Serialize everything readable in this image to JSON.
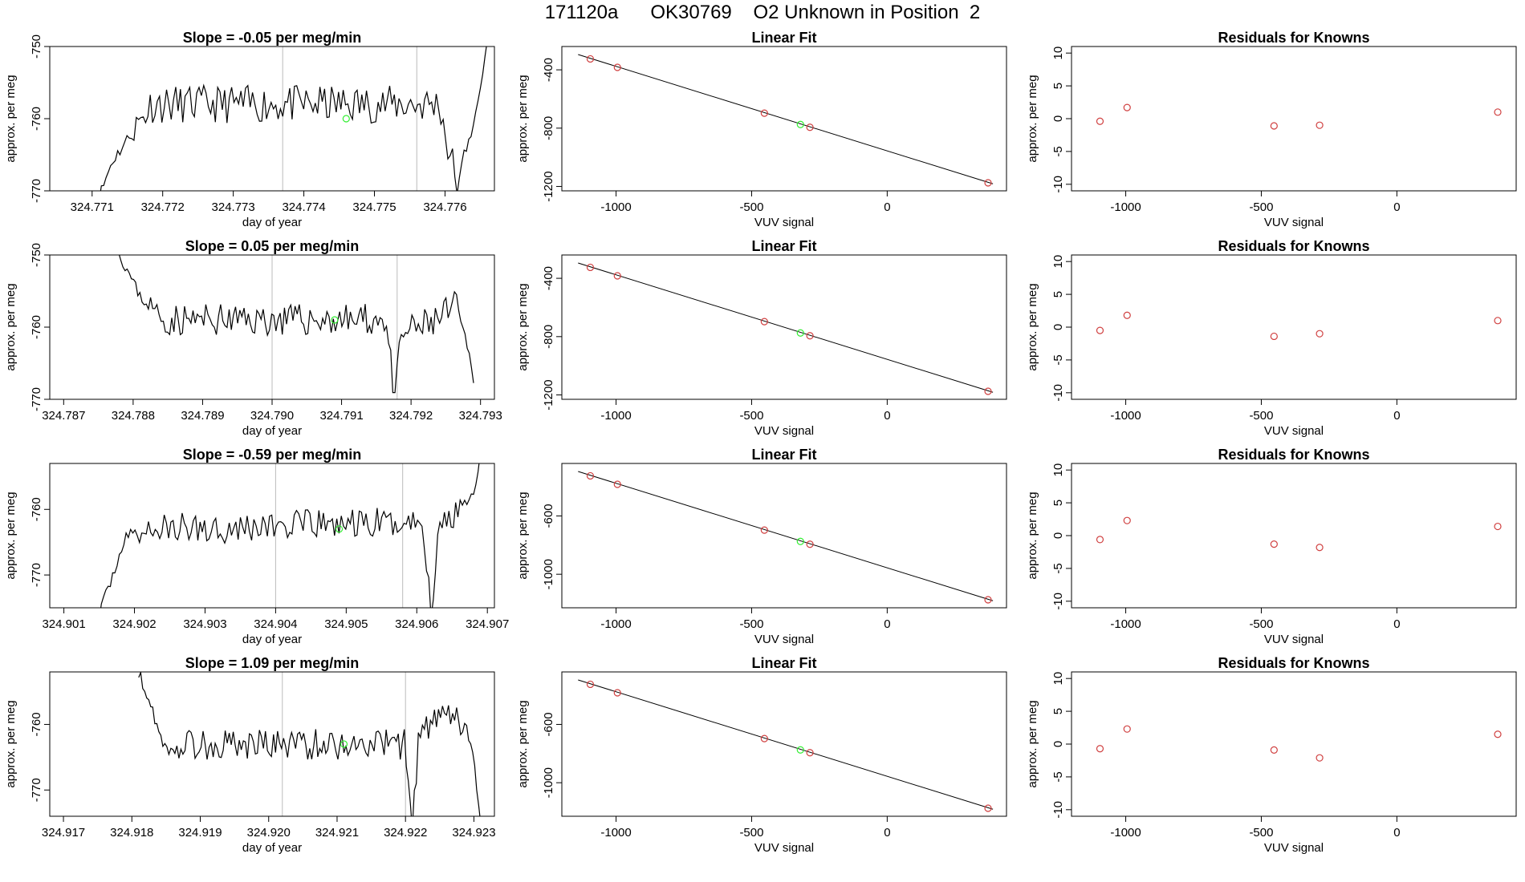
{
  "page": {
    "title": "171120a      OK30769    O2 Unknown in Position  2"
  },
  "colors": {
    "trace": "#000000",
    "marker_unknown": "#33ee33",
    "marker_known": "#d04040",
    "divider": "#bbbbbb",
    "fit_line": "#000000"
  },
  "chart_data": [
    {
      "type": "line",
      "panel": "time-1",
      "title": "Slope =  -0.05  per meg/min",
      "xlabel": "day of year",
      "ylabel": "approx. per meg",
      "xlim": [
        324.7704,
        324.7767
      ],
      "ylim": [
        -770,
        -750
      ],
      "xticks": [
        "324.771",
        "324.772",
        "324.773",
        "324.774",
        "324.775",
        "324.776"
      ],
      "yticks": [
        -770,
        -760,
        -750
      ],
      "ytick_labels": [
        "-770",
        "-760",
        "-750"
      ],
      "dividers": [
        324.7737,
        324.7756
      ],
      "unknown_point": {
        "x": 324.7746,
        "y": -760
      },
      "trace": {
        "x_start": 324.771,
        "x_end": 324.7766,
        "shape": [
          [
            0,
            -771
          ],
          [
            0.02,
            -770.5
          ],
          [
            0.05,
            -766
          ],
          [
            0.1,
            -762
          ],
          [
            0.15,
            -758
          ],
          [
            0.88,
            -758
          ],
          [
            0.9,
            -764
          ],
          [
            0.93,
            -770
          ],
          [
            0.95,
            -762
          ],
          [
            0.97,
            -760
          ],
          [
            0.985,
            -755
          ],
          [
            1.0,
            -749
          ]
        ],
        "noise": 2.6,
        "seed": 11
      }
    },
    {
      "type": "line",
      "panel": "time-2",
      "title": "Slope =  0.05  per meg/min",
      "xlabel": "day of year",
      "ylabel": "approx. per meg",
      "xlim": [
        324.7868,
        324.7932
      ],
      "ylim": [
        -770,
        -750
      ],
      "xticks": [
        "324.787",
        "324.788",
        "324.789",
        "324.790",
        "324.791",
        "324.792",
        "324.793"
      ],
      "yticks": [
        -770,
        -760,
        -750
      ],
      "ytick_labels": [
        "-770",
        "-760",
        "-750"
      ],
      "dividers": [
        324.79,
        324.7918
      ],
      "unknown_point": {
        "x": 324.7909,
        "y": -759
      },
      "trace": {
        "x_start": 324.7877,
        "x_end": 324.7929,
        "shape": [
          [
            0,
            -748
          ],
          [
            0.04,
            -752
          ],
          [
            0.08,
            -756
          ],
          [
            0.14,
            -759
          ],
          [
            0.76,
            -759
          ],
          [
            0.78,
            -771
          ],
          [
            0.8,
            -761
          ],
          [
            0.9,
            -759
          ],
          [
            0.95,
            -757
          ],
          [
            0.98,
            -762
          ],
          [
            1.0,
            -767
          ]
        ],
        "noise": 2.2,
        "seed": 23
      }
    },
    {
      "type": "line",
      "panel": "time-3",
      "title": "Slope =  -0.59  per meg/min",
      "xlabel": "day of year",
      "ylabel": "approx. per meg",
      "xlim": [
        324.9008,
        324.9071
      ],
      "ylim": [
        -775,
        -753
      ],
      "xticks": [
        "324.901",
        "324.902",
        "324.903",
        "324.904",
        "324.905",
        "324.906",
        "324.907"
      ],
      "yticks": [
        -770,
        -760
      ],
      "ytick_labels": [
        "-770",
        "-760"
      ],
      "dividers": [
        324.904,
        324.9058
      ],
      "unknown_point": {
        "x": 324.9049,
        "y": -763
      },
      "trace": {
        "x_start": 324.9015,
        "x_end": 324.9069,
        "shape": [
          [
            0,
            -776
          ],
          [
            0.03,
            -771
          ],
          [
            0.07,
            -764
          ],
          [
            0.15,
            -763
          ],
          [
            0.85,
            -762
          ],
          [
            0.87,
            -776
          ],
          [
            0.89,
            -763
          ],
          [
            0.95,
            -759
          ],
          [
            0.98,
            -758
          ],
          [
            1.0,
            -752
          ]
        ],
        "noise": 2.4,
        "seed": 37
      }
    },
    {
      "type": "line",
      "panel": "time-4",
      "title": "Slope =  1.09  per meg/min",
      "xlabel": "day of year",
      "ylabel": "approx. per meg",
      "xlim": [
        324.9168,
        324.9233
      ],
      "ylim": [
        -774,
        -752
      ],
      "xticks": [
        "324.917",
        "324.918",
        "324.919",
        "324.920",
        "324.921",
        "324.922",
        "324.923"
      ],
      "yticks": [
        -770,
        -760
      ],
      "ytick_labels": [
        "-770",
        "-760"
      ],
      "dividers": [
        324.9202,
        324.922
      ],
      "unknown_point": {
        "x": 324.9211,
        "y": -763
      },
      "trace": {
        "x_start": 324.9181,
        "x_end": 324.9231,
        "shape": [
          [
            0,
            -752
          ],
          [
            0.04,
            -758
          ],
          [
            0.08,
            -764
          ],
          [
            0.14,
            -763
          ],
          [
            0.78,
            -763
          ],
          [
            0.8,
            -776
          ],
          [
            0.82,
            -761
          ],
          [
            0.9,
            -759
          ],
          [
            0.95,
            -760
          ],
          [
            0.98,
            -765
          ],
          [
            1.0,
            -776
          ]
        ],
        "noise": 2.4,
        "seed": 53
      }
    },
    {
      "type": "scatter",
      "panel": "fit-1",
      "title": "Linear Fit",
      "xlabel": "VUV signal",
      "ylabel": "approx. per meg",
      "xlim": [
        -1200,
        440
      ],
      "ylim": [
        -1230,
        -240
      ],
      "xticks": [
        -1000,
        -500,
        0
      ],
      "xtick_labels": [
        "-1000",
        "-500",
        "0"
      ],
      "yticks": [
        -1200,
        -800,
        -400
      ],
      "ytick_labels": [
        "-1200",
        "-800",
        "-400"
      ],
      "line": {
        "x": [
          -1140,
          390
        ],
        "y": [
          -295,
          -1182
        ]
      },
      "knowns": [
        [
          -1095,
          -325
        ],
        [
          -995,
          -383
        ],
        [
          -453,
          -697
        ],
        [
          -285,
          -794
        ],
        [
          372,
          -1175
        ]
      ],
      "unknown": [
        [
          -320,
          -775
        ]
      ]
    },
    {
      "type": "scatter",
      "panel": "fit-2",
      "title": "Linear Fit",
      "xlabel": "VUV signal",
      "ylabel": "approx. per meg",
      "xlim": [
        -1200,
        440
      ],
      "ylim": [
        -1230,
        -240
      ],
      "xticks": [
        -1000,
        -500,
        0
      ],
      "xtick_labels": [
        "-1000",
        "-500",
        "0"
      ],
      "yticks": [
        -1200,
        -800,
        -400
      ],
      "ytick_labels": [
        "-1200",
        "-800",
        "-400"
      ],
      "line": {
        "x": [
          -1140,
          390
        ],
        "y": [
          -295,
          -1182
        ]
      },
      "knowns": [
        [
          -1095,
          -325
        ],
        [
          -995,
          -383
        ],
        [
          -453,
          -697
        ],
        [
          -285,
          -794
        ],
        [
          372,
          -1175
        ]
      ],
      "unknown": [
        [
          -320,
          -775
        ]
      ]
    },
    {
      "type": "scatter",
      "panel": "fit-3",
      "title": "Linear Fit",
      "xlabel": "VUV signal",
      "ylabel": "approx. per meg",
      "xlim": [
        -1200,
        440
      ],
      "ylim": [
        -1230,
        -240
      ],
      "xticks": [
        -1000,
        -500,
        0
      ],
      "xtick_labels": [
        "-1000",
        "-500",
        "0"
      ],
      "yticks": [
        -1000,
        -600
      ],
      "ytick_labels": [
        "-1000",
        "-600"
      ],
      "line": {
        "x": [
          -1140,
          390
        ],
        "y": [
          -295,
          -1182
        ]
      },
      "knowns": [
        [
          -1095,
          -325
        ],
        [
          -995,
          -383
        ],
        [
          -453,
          -697
        ],
        [
          -285,
          -794
        ],
        [
          372,
          -1175
        ]
      ],
      "unknown": [
        [
          -320,
          -775
        ]
      ]
    },
    {
      "type": "scatter",
      "panel": "fit-4",
      "title": "Linear Fit",
      "xlabel": "VUV signal",
      "ylabel": "approx. per meg",
      "xlim": [
        -1200,
        440
      ],
      "ylim": [
        -1230,
        -240
      ],
      "xticks": [
        -1000,
        -500,
        0
      ],
      "xtick_labels": [
        "-1000",
        "-500",
        "0"
      ],
      "yticks": [
        -1000,
        -600
      ],
      "ytick_labels": [
        "-1000",
        "-600"
      ],
      "line": {
        "x": [
          -1140,
          390
        ],
        "y": [
          -295,
          -1182
        ]
      },
      "knowns": [
        [
          -1095,
          -325
        ],
        [
          -995,
          -383
        ],
        [
          -453,
          -697
        ],
        [
          -285,
          -794
        ],
        [
          372,
          -1175
        ]
      ],
      "unknown": [
        [
          -320,
          -775
        ]
      ]
    },
    {
      "type": "scatter",
      "panel": "resid-1",
      "title": "Residuals for Knowns",
      "xlabel": "VUV signal",
      "ylabel": "approx. per meg",
      "xlim": [
        -1200,
        440
      ],
      "ylim": [
        -11,
        11
      ],
      "xticks": [
        -1000,
        -500,
        0
      ],
      "xtick_labels": [
        "-1000",
        "-500",
        "0"
      ],
      "yticks": [
        -10,
        -5,
        0,
        5,
        10
      ],
      "ytick_labels": [
        "-10",
        "-5",
        "0",
        "5",
        "10"
      ],
      "knowns": [
        [
          -1095,
          -0.4
        ],
        [
          -995,
          1.7
        ],
        [
          -453,
          -1.1
        ],
        [
          -285,
          -1.0
        ],
        [
          372,
          1.0
        ]
      ]
    },
    {
      "type": "scatter",
      "panel": "resid-2",
      "title": "Residuals for Knowns",
      "xlabel": "VUV signal",
      "ylabel": "approx. per meg",
      "xlim": [
        -1200,
        440
      ],
      "ylim": [
        -11,
        11
      ],
      "xticks": [
        -1000,
        -500,
        0
      ],
      "xtick_labels": [
        "-1000",
        "-500",
        "0"
      ],
      "yticks": [
        -10,
        -5,
        0,
        5,
        10
      ],
      "ytick_labels": [
        "-10",
        "-5",
        "0",
        "5",
        "10"
      ],
      "knowns": [
        [
          -1095,
          -0.5
        ],
        [
          -995,
          1.8
        ],
        [
          -453,
          -1.4
        ],
        [
          -285,
          -1.0
        ],
        [
          372,
          1.0
        ]
      ]
    },
    {
      "type": "scatter",
      "panel": "resid-3",
      "title": "Residuals for Knowns",
      "xlabel": "VUV signal",
      "ylabel": "approx. per meg",
      "xlim": [
        -1200,
        440
      ],
      "ylim": [
        -11,
        11
      ],
      "xticks": [
        -1000,
        -500,
        0
      ],
      "xtick_labels": [
        "-1000",
        "-500",
        "0"
      ],
      "yticks": [
        -10,
        -5,
        0,
        5,
        10
      ],
      "ytick_labels": [
        "-10",
        "-5",
        "0",
        "5",
        "10"
      ],
      "knowns": [
        [
          -1095,
          -0.6
        ],
        [
          -995,
          2.3
        ],
        [
          -453,
          -1.3
        ],
        [
          -285,
          -1.8
        ],
        [
          372,
          1.4
        ]
      ]
    },
    {
      "type": "scatter",
      "panel": "resid-4",
      "title": "Residuals for Knowns",
      "xlabel": "VUV signal",
      "ylabel": "approx. per meg",
      "xlim": [
        -1200,
        440
      ],
      "ylim": [
        -11,
        11
      ],
      "xticks": [
        -1000,
        -500,
        0
      ],
      "xtick_labels": [
        "-1000",
        "-500",
        "0"
      ],
      "yticks": [
        -10,
        -5,
        0,
        5,
        10
      ],
      "ytick_labels": [
        "-10",
        "-5",
        "0",
        "5",
        "10"
      ],
      "knowns": [
        [
          -1095,
          -0.7
        ],
        [
          -995,
          2.3
        ],
        [
          -453,
          -0.9
        ],
        [
          -285,
          -2.1
        ],
        [
          372,
          1.5
        ]
      ]
    }
  ]
}
